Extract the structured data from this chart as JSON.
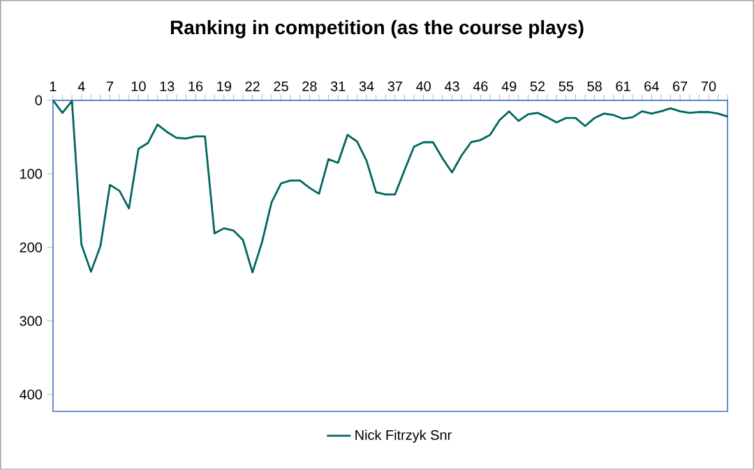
{
  "chart_data": {
    "type": "line",
    "title": "Ranking in competition (as the course plays)",
    "categories": [
      "1",
      null,
      null,
      "4",
      null,
      null,
      "7",
      null,
      null,
      "10",
      null,
      null,
      "13",
      null,
      null,
      "16",
      null,
      null,
      "19",
      null,
      null,
      "22",
      null,
      null,
      "25",
      null,
      null,
      "28",
      null,
      null,
      "31",
      null,
      null,
      "34",
      null,
      null,
      "37",
      null,
      null,
      "40",
      null,
      null,
      "43",
      null,
      null,
      "46",
      null,
      null,
      "49",
      null,
      null,
      "52",
      null,
      null,
      "55",
      null,
      null,
      "58",
      null,
      null,
      "61",
      null,
      null,
      "64",
      null,
      null,
      "67",
      null,
      null,
      "70",
      null,
      null
    ],
    "series": [
      {
        "name": "Nick Fitrzyk Snr",
        "color": "#00665e",
        "values": [
          0,
          17,
          1,
          196,
          233,
          198,
          115,
          123,
          147,
          66,
          58,
          33,
          43,
          51,
          52,
          49,
          49,
          181,
          174,
          177,
          190,
          234,
          193,
          139,
          113,
          109,
          109,
          119,
          127,
          80,
          85,
          47,
          56,
          82,
          125,
          128,
          128,
          95,
          63,
          57,
          57,
          79,
          98,
          75,
          57,
          54,
          47,
          27,
          15,
          28,
          19,
          17,
          23,
          30,
          24,
          24,
          35,
          24,
          18,
          20,
          25,
          23,
          15,
          18,
          15,
          11,
          15,
          17,
          16,
          16,
          18,
          22
        ]
      }
    ],
    "ylim": [
      423,
      0
    ],
    "yticks": [
      0,
      100,
      200,
      300,
      400
    ],
    "legend": "bottom"
  }
}
